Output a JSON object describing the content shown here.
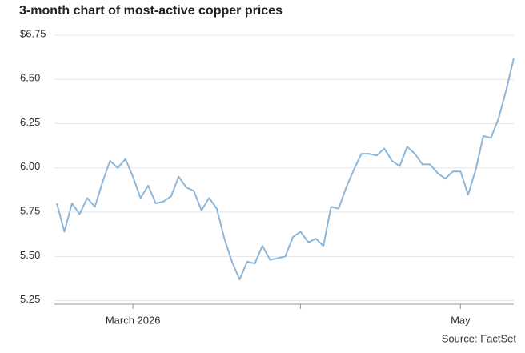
{
  "chart_data": {
    "type": "line",
    "title": "3-month chart of most-active copper prices",
    "source": "Source: FactSet",
    "categories": [
      null,
      null,
      null,
      null,
      null,
      null,
      null,
      null,
      null,
      null,
      "March 2026",
      null,
      null,
      null,
      null,
      null,
      null,
      null,
      null,
      null,
      null,
      null,
      null,
      null,
      null,
      null,
      null,
      null,
      null,
      null,
      null,
      null,
      null,
      null,
      null,
      null,
      null,
      null,
      null,
      null,
      null,
      null,
      null,
      null,
      null,
      null,
      null,
      null,
      null,
      null,
      null,
      null,
      null,
      "May",
      null,
      null,
      null,
      null,
      null,
      null,
      null
    ],
    "xticks": [
      10,
      32,
      53
    ],
    "series": [
      {
        "name": "Copper",
        "color": "#8db6d9",
        "values": [
          5.8,
          5.64,
          5.8,
          5.74,
          5.83,
          5.78,
          5.92,
          6.04,
          6.0,
          6.05,
          5.95,
          5.83,
          5.9,
          5.8,
          5.81,
          5.84,
          5.95,
          5.89,
          5.87,
          5.76,
          5.83,
          5.77,
          5.6,
          5.47,
          5.37,
          5.47,
          5.46,
          5.56,
          5.48,
          5.49,
          5.5,
          5.61,
          5.64,
          5.58,
          5.6,
          5.56,
          5.78,
          5.77,
          5.89,
          5.99,
          6.08,
          6.08,
          6.07,
          6.11,
          6.04,
          6.01,
          6.12,
          6.08,
          6.02,
          6.02,
          5.97,
          5.94,
          5.98,
          5.98,
          5.85,
          5.99,
          6.18,
          6.17,
          6.28,
          6.44,
          6.62
        ]
      }
    ],
    "ylim": [
      5.23,
      6.75
    ],
    "yticks": [
      {
        "value": 6.75,
        "label": "$6.75"
      },
      {
        "value": 6.5,
        "label": "6.50"
      },
      6.25,
      {
        "value": 6.0,
        "label": "6.00"
      },
      5.75,
      {
        "value": 5.5,
        "label": "5.50"
      },
      5.25
    ],
    "grid": true
  }
}
